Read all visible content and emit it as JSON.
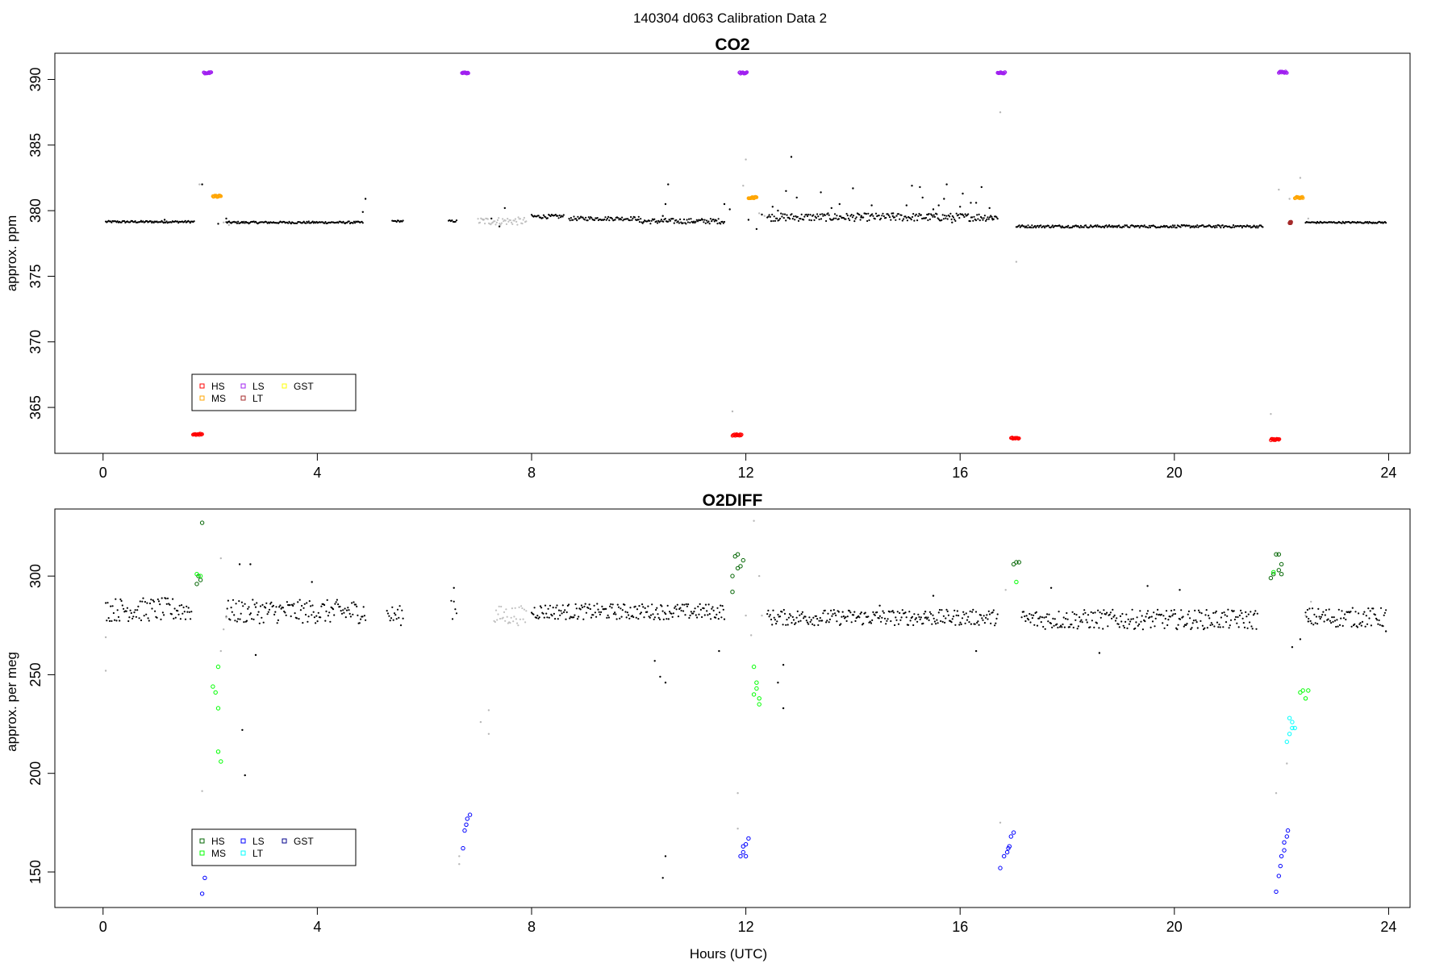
{
  "page_title": "140304   d063   Calibration Data 2",
  "chart_data": [
    {
      "type": "scatter",
      "title": "CO2",
      "ylabel": "approx. ppm",
      "xlabel": "",
      "xlim": [
        -0.9,
        24.4
      ],
      "ylim": [
        361.5,
        392.0
      ],
      "xticks": [
        0,
        4,
        8,
        12,
        16,
        20,
        24
      ],
      "yticks": [
        365,
        370,
        375,
        380,
        385,
        390
      ],
      "legend": {
        "position": "bottom-left",
        "entries": [
          {
            "label": "HS",
            "color": "#ff0000"
          },
          {
            "label": "MS",
            "color": "#ffa500"
          },
          {
            "label": "LS",
            "color": "#a020f0"
          },
          {
            "label": "LT",
            "color": "#a52a2a"
          },
          {
            "label": "GST",
            "color": "#ffff00"
          }
        ]
      },
      "ambient_segments": [
        {
          "x0": 0.05,
          "x1": 1.7,
          "y": 379.15,
          "noise": 0.08,
          "color": "#000000"
        },
        {
          "x0": 2.3,
          "x1": 4.85,
          "y": 379.1,
          "noise": 0.08,
          "color": "#000000"
        },
        {
          "x0": 5.4,
          "x1": 5.6,
          "y": 379.2,
          "noise": 0.06,
          "color": "#000000"
        },
        {
          "x0": 6.45,
          "x1": 6.6,
          "y": 379.2,
          "noise": 0.08,
          "color": "#000000"
        },
        {
          "x0": 7.0,
          "x1": 7.9,
          "y": 379.2,
          "noise": 0.3,
          "color": "#c0c0c0"
        },
        {
          "x0": 8.0,
          "x1": 8.6,
          "y": 379.55,
          "noise": 0.15,
          "color": "#000000"
        },
        {
          "x0": 8.7,
          "x1": 10.0,
          "y": 379.4,
          "noise": 0.15,
          "color": "#000000"
        },
        {
          "x0": 10.0,
          "x1": 11.6,
          "y": 379.2,
          "noise": 0.2,
          "color": "#000000"
        },
        {
          "x0": 12.4,
          "x1": 16.7,
          "y": 379.5,
          "noise": 0.3,
          "color": "#000000"
        },
        {
          "x0": 17.05,
          "x1": 21.65,
          "y": 378.8,
          "noise": 0.1,
          "color": "#000000"
        },
        {
          "x0": 22.45,
          "x1": 23.95,
          "y": 379.1,
          "noise": 0.06,
          "color": "#000000"
        }
      ],
      "scatter_points": [
        [
          1.15,
          379.3
        ],
        [
          1.85,
          382.0
        ],
        [
          2.15,
          379.0
        ],
        [
          2.3,
          379.4
        ],
        [
          4.9,
          380.9
        ],
        [
          4.85,
          379.9
        ],
        [
          7.25,
          379.4
        ],
        [
          7.4,
          378.8
        ],
        [
          7.5,
          380.2
        ],
        [
          10.45,
          379.6
        ],
        [
          10.5,
          380.5
        ],
        [
          10.55,
          382.0
        ],
        [
          11.6,
          380.5
        ],
        [
          11.7,
          380.1
        ],
        [
          12.2,
          378.6
        ],
        [
          12.3,
          379.7
        ],
        [
          12.5,
          380.3
        ],
        [
          12.6,
          380.0
        ],
        [
          12.75,
          381.5
        ],
        [
          12.85,
          384.1
        ],
        [
          12.95,
          381.0
        ],
        [
          13.4,
          381.4
        ],
        [
          13.6,
          380.2
        ],
        [
          13.75,
          380.5
        ],
        [
          14.0,
          381.7
        ],
        [
          14.35,
          380.4
        ],
        [
          14.75,
          379.8
        ],
        [
          15.0,
          380.4
        ],
        [
          15.1,
          381.9
        ],
        [
          15.25,
          381.8
        ],
        [
          15.3,
          381.0
        ],
        [
          15.4,
          379.7
        ],
        [
          15.6,
          380.4
        ],
        [
          15.7,
          380.9
        ],
        [
          15.75,
          382.0
        ],
        [
          15.85,
          379.1
        ],
        [
          16.0,
          380.3
        ],
        [
          16.05,
          381.3
        ],
        [
          16.3,
          380.6
        ],
        [
          16.4,
          381.8
        ],
        [
          16.55,
          380.2
        ],
        [
          16.6,
          379.4
        ],
        [
          12.05,
          379.3
        ],
        [
          16.2,
          380.6
        ],
        [
          15.5,
          380.1
        ],
        [
          14.15,
          379.5
        ]
      ],
      "grey_points": [
        [
          1.8,
          382.0
        ],
        [
          2.25,
          379.1
        ],
        [
          2.35,
          378.9
        ],
        [
          11.75,
          364.7
        ],
        [
          11.95,
          381.9
        ],
        [
          12.0,
          383.9
        ],
        [
          12.25,
          379.8
        ],
        [
          12.35,
          379.6
        ],
        [
          16.75,
          387.5
        ],
        [
          17.05,
          376.1
        ],
        [
          21.8,
          364.5
        ],
        [
          21.95,
          381.6
        ],
        [
          22.15,
          380.9
        ],
        [
          22.35,
          382.5
        ],
        [
          22.5,
          379.4
        ],
        [
          7.1,
          379.3
        ]
      ],
      "cal_clusters": [
        {
          "name": "LS",
          "color": "#a020f0",
          "x0": 1.88,
          "x1": 2.02,
          "y": 390.5
        },
        {
          "name": "LS",
          "color": "#a020f0",
          "x0": 6.7,
          "x1": 6.82,
          "y": 390.5
        },
        {
          "name": "LS",
          "color": "#a020f0",
          "x0": 11.88,
          "x1": 12.02,
          "y": 390.5
        },
        {
          "name": "LS",
          "color": "#a020f0",
          "x0": 16.7,
          "x1": 16.84,
          "y": 390.5
        },
        {
          "name": "LS",
          "color": "#a020f0",
          "x0": 21.95,
          "x1": 22.1,
          "y": 390.55
        },
        {
          "name": "MS",
          "color": "#ffa500",
          "x0": 2.05,
          "x1": 2.2,
          "y": 381.1
        },
        {
          "name": "MS",
          "color": "#ffa500",
          "x0": 12.05,
          "x1": 12.2,
          "y": 381.0
        },
        {
          "name": "MS",
          "color": "#ffa500",
          "x0": 22.25,
          "x1": 22.4,
          "y": 381.0
        },
        {
          "name": "HS",
          "color": "#ff0000",
          "x0": 1.68,
          "x1": 1.85,
          "y": 362.95
        },
        {
          "name": "HS",
          "color": "#ff0000",
          "x0": 11.75,
          "x1": 11.92,
          "y": 362.9
        },
        {
          "name": "HS",
          "color": "#ff0000",
          "x0": 16.95,
          "x1": 17.1,
          "y": 362.65
        },
        {
          "name": "HS",
          "color": "#ff0000",
          "x0": 21.8,
          "x1": 21.96,
          "y": 362.55
        },
        {
          "name": "LT",
          "color": "#a52a2a",
          "x0": 22.15,
          "x1": 22.18,
          "y": 379.1
        }
      ]
    },
    {
      "type": "scatter",
      "title": "O2DIFF",
      "ylabel": "approx. per meg",
      "xlabel": "Hours (UTC)",
      "xlim": [
        -0.9,
        24.4
      ],
      "ylim": [
        132.0,
        334.0
      ],
      "xticks": [
        0,
        4,
        8,
        12,
        16,
        20,
        24
      ],
      "yticks": [
        150,
        200,
        250,
        300
      ],
      "legend": {
        "position": "bottom-left",
        "entries": [
          {
            "label": "HS",
            "color": "#006400"
          },
          {
            "label": "MS",
            "color": "#00ff00"
          },
          {
            "label": "LS",
            "color": "#0000ff"
          },
          {
            "label": "LT",
            "color": "#00ffff"
          },
          {
            "label": "GST",
            "color": "#00008b"
          }
        ]
      },
      "ambient_segments": [
        {
          "x0": 0.05,
          "x1": 1.65,
          "y": 283,
          "noise": 6,
          "color": "#000000"
        },
        {
          "x0": 2.3,
          "x1": 4.9,
          "y": 282,
          "noise": 6,
          "color": "#000000"
        },
        {
          "x0": 5.3,
          "x1": 5.6,
          "y": 280,
          "noise": 5,
          "color": "#000000"
        },
        {
          "x0": 6.5,
          "x1": 6.6,
          "y": 285,
          "noise": 8,
          "color": "#000000"
        },
        {
          "x0": 7.3,
          "x1": 7.9,
          "y": 280,
          "noise": 5,
          "color": "#c0c0c0"
        },
        {
          "x0": 8.0,
          "x1": 11.6,
          "y": 282,
          "noise": 4,
          "color": "#000000"
        },
        {
          "x0": 12.4,
          "x1": 16.7,
          "y": 279,
          "noise": 4,
          "color": "#000000"
        },
        {
          "x0": 17.15,
          "x1": 21.55,
          "y": 278,
          "noise": 5,
          "color": "#000000"
        },
        {
          "x0": 22.45,
          "x1": 23.95,
          "y": 279,
          "noise": 5,
          "color": "#000000"
        }
      ],
      "scatter_points": [
        [
          2.55,
          306
        ],
        [
          2.75,
          306
        ],
        [
          2.85,
          260
        ],
        [
          2.6,
          222
        ],
        [
          2.65,
          199
        ],
        [
          3.9,
          297
        ],
        [
          6.55,
          294
        ],
        [
          10.3,
          257
        ],
        [
          10.4,
          249
        ],
        [
          10.5,
          246
        ],
        [
          10.5,
          158
        ],
        [
          10.45,
          147
        ],
        [
          11.5,
          262
        ],
        [
          12.6,
          246
        ],
        [
          12.7,
          233
        ],
        [
          12.7,
          255
        ],
        [
          14.5,
          285
        ],
        [
          15.35,
          282
        ],
        [
          15.5,
          290
        ],
        [
          16.3,
          262
        ],
        [
          17.7,
          294
        ],
        [
          18.6,
          261
        ],
        [
          19.5,
          295
        ],
        [
          20.1,
          293
        ],
        [
          22.2,
          264
        ],
        [
          22.35,
          268
        ],
        [
          22.5,
          277
        ],
        [
          23.95,
          272
        ]
      ],
      "grey_points": [
        [
          0.05,
          252
        ],
        [
          0.05,
          269
        ],
        [
          1.85,
          191
        ],
        [
          2.2,
          262
        ],
        [
          2.25,
          273
        ],
        [
          2.3,
          279
        ],
        [
          2.2,
          309
        ],
        [
          6.65,
          154
        ],
        [
          6.65,
          158
        ],
        [
          7.05,
          226
        ],
        [
          7.2,
          232
        ],
        [
          7.2,
          220
        ],
        [
          11.85,
          190
        ],
        [
          11.85,
          172
        ],
        [
          12.0,
          280
        ],
        [
          12.1,
          270
        ],
        [
          12.15,
          328
        ],
        [
          12.25,
          300
        ],
        [
          12.3,
          280
        ],
        [
          16.75,
          175
        ],
        [
          16.85,
          293
        ],
        [
          21.9,
          190
        ],
        [
          22.1,
          205
        ],
        [
          22.45,
          280
        ],
        [
          22.55,
          287
        ]
      ],
      "cal_points": [
        {
          "color": "#006400",
          "points": [
            [
              1.85,
              327
            ],
            [
              1.78,
              300
            ],
            [
              1.82,
              298
            ],
            [
              1.75,
              296
            ],
            [
              11.8,
              310
            ],
            [
              11.85,
              311
            ],
            [
              11.9,
              305
            ],
            [
              11.95,
              308
            ],
            [
              11.85,
              304
            ],
            [
              11.75,
              300
            ],
            [
              11.75,
              292
            ],
            [
              17.0,
              306
            ],
            [
              17.05,
              307
            ],
            [
              17.1,
              307
            ],
            [
              21.9,
              311
            ],
            [
              21.95,
              311
            ],
            [
              22.0,
              306
            ],
            [
              21.95,
              303
            ],
            [
              22.0,
              301
            ],
            [
              21.8,
              299
            ],
            [
              21.85,
              301
            ]
          ]
        },
        {
          "color": "#00ff00",
          "points": [
            [
              1.75,
              301
            ],
            [
              1.82,
              300
            ],
            [
              2.05,
              244
            ],
            [
              2.1,
              241
            ],
            [
              2.15,
              233
            ],
            [
              2.15,
              211
            ],
            [
              2.2,
              206
            ],
            [
              2.15,
              254
            ],
            [
              12.15,
              254
            ],
            [
              12.2,
              246
            ],
            [
              12.2,
              243
            ],
            [
              12.25,
              235
            ],
            [
              12.25,
              238
            ],
            [
              12.15,
              240
            ],
            [
              17.05,
              297
            ],
            [
              22.35,
              241
            ],
            [
              22.4,
              242
            ],
            [
              22.45,
              238
            ],
            [
              22.5,
              242
            ],
            [
              21.85,
              302
            ]
          ]
        },
        {
          "color": "#0000ff",
          "points": [
            [
              1.9,
              147
            ],
            [
              1.85,
              139
            ],
            [
              6.72,
              162
            ],
            [
              6.75,
              171
            ],
            [
              6.8,
              177
            ],
            [
              6.85,
              179
            ],
            [
              6.78,
              174
            ],
            [
              11.9,
              158
            ],
            [
              11.95,
              160
            ],
            [
              12.0,
              164
            ],
            [
              12.05,
              167
            ],
            [
              12.0,
              158
            ],
            [
              11.95,
              163
            ],
            [
              16.75,
              152
            ],
            [
              16.82,
              158
            ],
            [
              16.88,
              160
            ],
            [
              16.92,
              163
            ],
            [
              16.95,
              168
            ],
            [
              17.0,
              170
            ],
            [
              16.9,
              162
            ],
            [
              21.9,
              140
            ],
            [
              21.95,
              148
            ],
            [
              21.98,
              153
            ],
            [
              22.0,
              158
            ],
            [
              22.05,
              161
            ],
            [
              22.05,
              165
            ],
            [
              22.1,
              168
            ],
            [
              22.12,
              171
            ]
          ]
        },
        {
          "color": "#00ffff",
          "points": [
            [
              22.15,
              220
            ],
            [
              22.2,
              223
            ],
            [
              22.25,
              223
            ],
            [
              22.2,
              226
            ],
            [
              22.15,
              228
            ],
            [
              22.1,
              216
            ]
          ]
        }
      ]
    }
  ]
}
